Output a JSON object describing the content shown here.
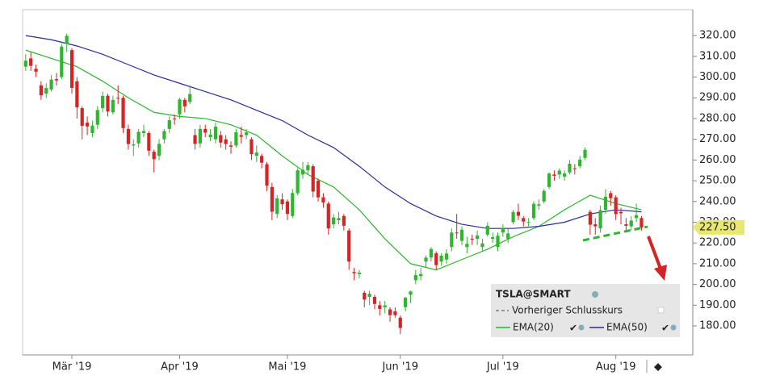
{
  "chart_data": {
    "type": "candlestick",
    "legend_title": "TSLA@SMART",
    "legend_prev_close": "Vorheriger Schlusskurs",
    "categories": [
      null,
      null,
      null,
      null,
      null,
      null,
      null,
      null,
      null,
      "Mär '19",
      null,
      null,
      null,
      null,
      null,
      null,
      null,
      null,
      null,
      null,
      null,
      null,
      null,
      null,
      null,
      null,
      null,
      null,
      null,
      null,
      "Apr '19",
      null,
      null,
      null,
      null,
      null,
      null,
      null,
      null,
      null,
      null,
      null,
      null,
      null,
      null,
      null,
      null,
      null,
      null,
      null,
      null,
      "Mai '19",
      null,
      null,
      null,
      null,
      null,
      null,
      null,
      null,
      null,
      null,
      null,
      null,
      null,
      null,
      null,
      null,
      null,
      null,
      null,
      null,
      null,
      "Jun '19",
      null,
      null,
      null,
      null,
      null,
      null,
      null,
      null,
      null,
      null,
      null,
      null,
      null,
      null,
      null,
      null,
      null,
      null,
      null,
      "Jul '19",
      null,
      null,
      null,
      null,
      null,
      null,
      null,
      null,
      null,
      null,
      null,
      null,
      null,
      null,
      null,
      null,
      null,
      null,
      null,
      null,
      null,
      "Aug '19",
      null,
      null,
      null,
      null,
      null
    ],
    "open": [
      305,
      309,
      304,
      296,
      292,
      294,
      299,
      300,
      316,
      313,
      298,
      285,
      278,
      273,
      277,
      285,
      291,
      283,
      290,
      290,
      275,
      267,
      268,
      273,
      273,
      264,
      262,
      270,
      275,
      280,
      282,
      289,
      288,
      272,
      268,
      275,
      271,
      270,
      272,
      270,
      267,
      267,
      272,
      272,
      270,
      262,
      262,
      258,
      247,
      234,
      241,
      240,
      233,
      244,
      253,
      255,
      257,
      250,
      242,
      239,
      229,
      231,
      233,
      226,
      206,
      205,
      196,
      194,
      194,
      190,
      189,
      188,
      187,
      184,
      189,
      195,
      202,
      204,
      211,
      213,
      215,
      211,
      212,
      218,
      225,
      221,
      218,
      222,
      222,
      218,
      224,
      222,
      218,
      225,
      222,
      230,
      235,
      232,
      230,
      232,
      238,
      240,
      247,
      253,
      253,
      252,
      254,
      256,
      257,
      261,
      235,
      229,
      227,
      236,
      244,
      242,
      235,
      229,
      228,
      232,
      232
    ],
    "high": [
      311,
      312,
      306,
      298,
      297,
      301,
      302,
      316,
      321,
      314,
      300,
      286,
      281,
      279,
      286,
      293,
      292,
      291,
      296,
      291,
      277,
      270,
      275,
      277,
      274,
      265,
      270,
      275,
      281,
      282,
      290,
      290,
      296,
      275,
      277,
      277,
      275,
      278,
      274,
      272,
      269,
      275,
      276,
      275,
      271,
      267,
      263,
      259,
      249,
      243,
      244,
      241,
      246,
      256,
      259,
      259,
      258,
      251,
      244,
      240,
      234,
      235,
      234,
      227,
      208,
      207,
      197,
      197,
      195,
      192,
      192,
      189,
      189,
      185,
      194,
      197,
      207,
      208,
      214,
      218,
      216,
      215,
      217,
      227,
      234,
      228,
      223,
      224,
      226,
      222,
      230,
      225,
      225,
      229,
      227,
      236,
      239,
      233,
      232,
      240,
      241,
      246,
      254,
      255,
      256,
      255,
      260,
      258,
      262,
      266,
      236,
      232,
      238,
      246,
      245,
      243,
      237,
      232,
      233,
      239,
      233
    ],
    "low": [
      303,
      303,
      300,
      289,
      290,
      293,
      296,
      299,
      312,
      292,
      280,
      270,
      272,
      271,
      275,
      283,
      281,
      282,
      287,
      273,
      265,
      262,
      266,
      271,
      262,
      254,
      260,
      268,
      273,
      277,
      280,
      283,
      287,
      265,
      266,
      271,
      269,
      268,
      266,
      265,
      263,
      266,
      268,
      270,
      260,
      259,
      256,
      245,
      231,
      232,
      236,
      231,
      232,
      243,
      251,
      253,
      242,
      240,
      237,
      224,
      227,
      229,
      226,
      207,
      202,
      203,
      189,
      190,
      188,
      185,
      186,
      182,
      184,
      176,
      187,
      191,
      200,
      202,
      208,
      211,
      207,
      209,
      210,
      216,
      222,
      219,
      215,
      219,
      219,
      216,
      223,
      220,
      216,
      223,
      220,
      229,
      231,
      228,
      228,
      231,
      236,
      239,
      246,
      250,
      251,
      250,
      253,
      253,
      256,
      260,
      224,
      224,
      225,
      234,
      238,
      231,
      229,
      225,
      226,
      230,
      226
    ],
    "close": [
      307.9,
      305.4,
      302.6,
      291.2,
      294.7,
      298.8,
      298.4,
      314.7,
      319.9,
      294.8,
      285.4,
      276.5,
      276.2,
      276.6,
      284.1,
      290.9,
      283.4,
      289.0,
      289.9,
      275.4,
      267.7,
      267.5,
      273.6,
      274.0,
      264.5,
      260.4,
      267.8,
      274.0,
      279.2,
      279.9,
      289.2,
      285.9,
      291.8,
      267.8,
      275.0,
      273.2,
      272.3,
      276.1,
      268.4,
      267.7,
      266.4,
      273.4,
      271.2,
      273.3,
      262.8,
      263.6,
      258.7,
      247.6,
      235.1,
      241.5,
      238.7,
      234.0,
      244.1,
      255.0,
      255.3,
      257.5,
      244.8,
      242.0,
      239.5,
      227.0,
      232.3,
      232.0,
      228.3,
      211.0,
      205.4,
      205.7,
      192.7,
      195.5,
      190.6,
      188.2,
      189.9,
      185.2,
      185.2,
      179.0,
      193.6,
      196.6,
      204.5,
      205.0,
      212.9,
      217.1,
      209.3,
      213.9,
      214.9,
      225.0,
      224.7,
      226.4,
      219.6,
      221.9,
      223.6,
      219.8,
      228.3,
      222.8,
      223.5,
      227.2,
      224.6,
      234.9,
      233.1,
      230.3,
      230.1,
      238.9,
      238.6,
      245.1,
      253.5,
      252.4,
      254.9,
      253.5,
      258.2,
      255.7,
      260.2,
      264.9,
      228.8,
      228.0,
      235.8,
      242.3,
      241.6,
      233.9,
      234.3,
      228.3,
      230.8,
      233.4,
      227.5
    ],
    "up_color": "#2fb52f",
    "down_color": "#d42424",
    "lines": [
      {
        "name": "EMA(20)",
        "color": "#2fb52f",
        "x": [
          0,
          5,
          10,
          15,
          20,
          25,
          30,
          35,
          40,
          45,
          50,
          55,
          60,
          65,
          70,
          75,
          80,
          85,
          90,
          95,
          100,
          105,
          110,
          115,
          120
        ],
        "values": [
          313,
          309,
          305,
          298,
          290,
          283,
          281,
          280,
          277,
          272,
          262,
          253,
          247,
          236,
          222,
          210,
          207,
          212,
          217,
          223,
          228,
          236,
          243,
          239,
          236
        ]
      },
      {
        "name": "EMA(50)",
        "color": "#2a2a9a",
        "x": [
          0,
          5,
          10,
          15,
          20,
          25,
          30,
          35,
          40,
          45,
          50,
          55,
          60,
          65,
          70,
          75,
          80,
          85,
          90,
          95,
          100,
          105,
          110,
          115,
          120
        ],
        "values": [
          320,
          318,
          315,
          311,
          306,
          301,
          297,
          293,
          289,
          284,
          279,
          272,
          266,
          257,
          247,
          239,
          233,
          229,
          227,
          227,
          228,
          230,
          234,
          236,
          235
        ]
      }
    ],
    "last_price": {
      "value": 227.5,
      "label": "227.50"
    },
    "xlim": [
      -0.6,
      130
    ],
    "ylim": [
      166,
      332.5
    ],
    "yticks": [
      {
        "value": 180,
        "label": "180.00"
      },
      {
        "value": 190,
        "label": "190.00"
      },
      {
        "value": 200,
        "label": "200.00"
      },
      {
        "value": 210,
        "label": "210.00"
      },
      {
        "value": 220,
        "label": "220.00"
      },
      {
        "value": 230,
        "label": "230.00"
      },
      {
        "value": 240,
        "label": "240.00"
      },
      {
        "value": 250,
        "label": "250.00"
      },
      {
        "value": 260,
        "label": "260.00"
      },
      {
        "value": 270,
        "label": "270.00"
      },
      {
        "value": 280,
        "label": "280.00"
      },
      {
        "value": 290,
        "label": "290.00"
      },
      {
        "value": 300,
        "label": "300.00"
      },
      {
        "value": 310,
        "label": "310.00"
      },
      {
        "value": 320,
        "label": "320.00"
      }
    ]
  }
}
